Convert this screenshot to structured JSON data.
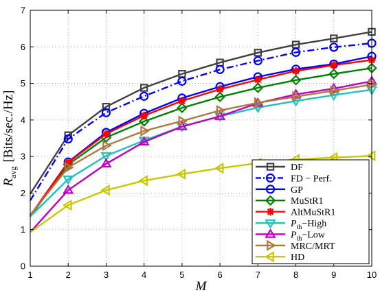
{
  "chart_data": {
    "type": "line",
    "xlabel": "M",
    "ylabel": "R_avg [Bits/sec./Hz]",
    "ylabel_main": "R",
    "ylabel_sub": "avg",
    "ylabel_unit": "[Bits/sec./Hz]",
    "xlim": [
      1,
      10
    ],
    "ylim": [
      0,
      7
    ],
    "x_ticks": [
      "1",
      "2",
      "3",
      "4",
      "5",
      "6",
      "7",
      "8",
      "9",
      "10"
    ],
    "y_ticks": [
      "0",
      "1",
      "2",
      "3",
      "4",
      "5",
      "6",
      "7"
    ],
    "grid": true,
    "grid_style": "dotted",
    "legend_position": "bottom-right",
    "x": [
      1,
      2,
      3,
      4,
      5,
      6,
      7,
      8,
      9,
      10
    ],
    "series": [
      {
        "name": "DF",
        "color": "#404040",
        "marker": "square",
        "dash": "solid",
        "values": [
          1.98,
          3.58,
          4.36,
          4.88,
          5.26,
          5.57,
          5.84,
          6.06,
          6.23,
          6.41
        ]
      },
      {
        "name": "FD − Perf.",
        "color": "#0000ff",
        "marker": "circle",
        "dash": "dashdot",
        "values": [
          1.8,
          3.48,
          4.2,
          4.65,
          5.06,
          5.38,
          5.62,
          5.85,
          5.99,
          6.1
        ]
      },
      {
        "name": "GP",
        "color": "#0000ff",
        "marker": "circle",
        "dash": "solid",
        "values": [
          1.38,
          2.85,
          3.66,
          4.18,
          4.6,
          4.91,
          5.18,
          5.39,
          5.53,
          5.74
        ]
      },
      {
        "name": "MuStR1",
        "color": "#008000",
        "marker": "diamond",
        "dash": "solid",
        "values": [
          1.36,
          2.78,
          3.52,
          3.96,
          4.33,
          4.63,
          4.88,
          5.09,
          5.26,
          5.42
        ]
      },
      {
        "name": "AltMuStR1",
        "color": "#ff0000",
        "marker": "star",
        "dash": "solid",
        "values": [
          1.38,
          2.84,
          3.62,
          4.12,
          4.52,
          4.84,
          5.1,
          5.34,
          5.5,
          5.64
        ]
      },
      {
        "name": "P_th−High",
        "label_main": "P",
        "label_sub": "th",
        "label_rest": "−High",
        "color": "#20c0c0",
        "marker": "triangle-down",
        "dash": "solid",
        "values": [
          1.36,
          2.38,
          3.02,
          3.44,
          3.82,
          4.1,
          4.34,
          4.52,
          4.68,
          4.83
        ]
      },
      {
        "name": "P_th−Low",
        "label_main": "P",
        "label_sub": "th",
        "label_rest": "−Low",
        "color": "#c000c0",
        "marker": "triangle-up",
        "dash": "solid",
        "values": [
          0.93,
          2.08,
          2.8,
          3.4,
          3.82,
          4.1,
          4.46,
          4.7,
          4.86,
          5.06
        ]
      },
      {
        "name": "MRC/MRT",
        "color": "#b07840",
        "marker": "triangle-right",
        "dash": "solid",
        "values": [
          1.4,
          2.7,
          3.3,
          3.7,
          3.97,
          4.26,
          4.47,
          4.64,
          4.8,
          4.97
        ]
      },
      {
        "name": "HD",
        "color": "#c8c800",
        "marker": "triangle-left",
        "dash": "solid",
        "values": [
          0.93,
          1.67,
          2.08,
          2.34,
          2.52,
          2.68,
          2.82,
          2.92,
          2.97,
          3.02
        ]
      }
    ]
  }
}
